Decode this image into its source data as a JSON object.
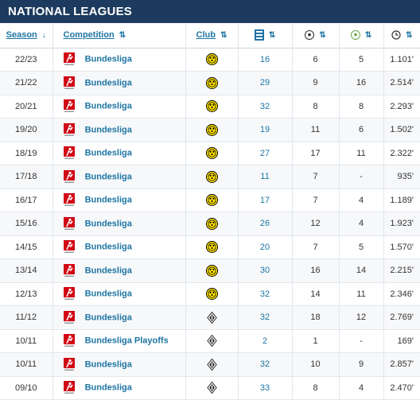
{
  "section_title": "NATIONAL LEAGUES",
  "columns": {
    "season": "Season",
    "competition": "Competition",
    "club": "Club",
    "apps_icon": "jersey-icon",
    "goals_icon": "football-icon",
    "assists_icon": "assist-icon",
    "minutes_icon": "clock-icon"
  },
  "colors": {
    "header_bg": "#1d3b5e",
    "link": "#1d75a3",
    "bundesliga_red": "#d20515",
    "bvb_yellow": "#fde100"
  },
  "rows": [
    {
      "season": "22/23",
      "competition": "Bundesliga",
      "club": "bvb",
      "apps": "16",
      "goals": "6",
      "assists": "5",
      "minutes": "1.101'"
    },
    {
      "season": "21/22",
      "competition": "Bundesliga",
      "club": "bvb",
      "apps": "29",
      "goals": "9",
      "assists": "16",
      "minutes": "2.514'"
    },
    {
      "season": "20/21",
      "competition": "Bundesliga",
      "club": "bvb",
      "apps": "32",
      "goals": "8",
      "assists": "8",
      "minutes": "2.293'"
    },
    {
      "season": "19/20",
      "competition": "Bundesliga",
      "club": "bvb",
      "apps": "19",
      "goals": "11",
      "assists": "6",
      "minutes": "1.502'"
    },
    {
      "season": "18/19",
      "competition": "Bundesliga",
      "club": "bvb",
      "apps": "27",
      "goals": "17",
      "assists": "11",
      "minutes": "2.322'"
    },
    {
      "season": "17/18",
      "competition": "Bundesliga",
      "club": "bvb",
      "apps": "11",
      "goals": "7",
      "assists": "-",
      "minutes": "935'"
    },
    {
      "season": "16/17",
      "competition": "Bundesliga",
      "club": "bvb",
      "apps": "17",
      "goals": "7",
      "assists": "4",
      "minutes": "1.189'"
    },
    {
      "season": "15/16",
      "competition": "Bundesliga",
      "club": "bvb",
      "apps": "26",
      "goals": "12",
      "assists": "4",
      "minutes": "1.923'"
    },
    {
      "season": "14/15",
      "competition": "Bundesliga",
      "club": "bvb",
      "apps": "20",
      "goals": "7",
      "assists": "5",
      "minutes": "1.570'"
    },
    {
      "season": "13/14",
      "competition": "Bundesliga",
      "club": "bvb",
      "apps": "30",
      "goals": "16",
      "assists": "14",
      "minutes": "2.215'"
    },
    {
      "season": "12/13",
      "competition": "Bundesliga",
      "club": "bvb",
      "apps": "32",
      "goals": "14",
      "assists": "11",
      "minutes": "2.346'"
    },
    {
      "season": "11/12",
      "competition": "Bundesliga",
      "club": "bmg",
      "apps": "32",
      "goals": "18",
      "assists": "12",
      "minutes": "2.769'"
    },
    {
      "season": "10/11",
      "competition": "Bundesliga Playoffs",
      "club": "bmg",
      "apps": "2",
      "goals": "1",
      "assists": "-",
      "minutes": "169'"
    },
    {
      "season": "10/11",
      "competition": "Bundesliga",
      "club": "bmg",
      "apps": "32",
      "goals": "10",
      "assists": "9",
      "minutes": "2.857'"
    },
    {
      "season": "09/10",
      "competition": "Bundesliga",
      "club": "bmg",
      "apps": "33",
      "goals": "8",
      "assists": "4",
      "minutes": "2.470'"
    }
  ]
}
